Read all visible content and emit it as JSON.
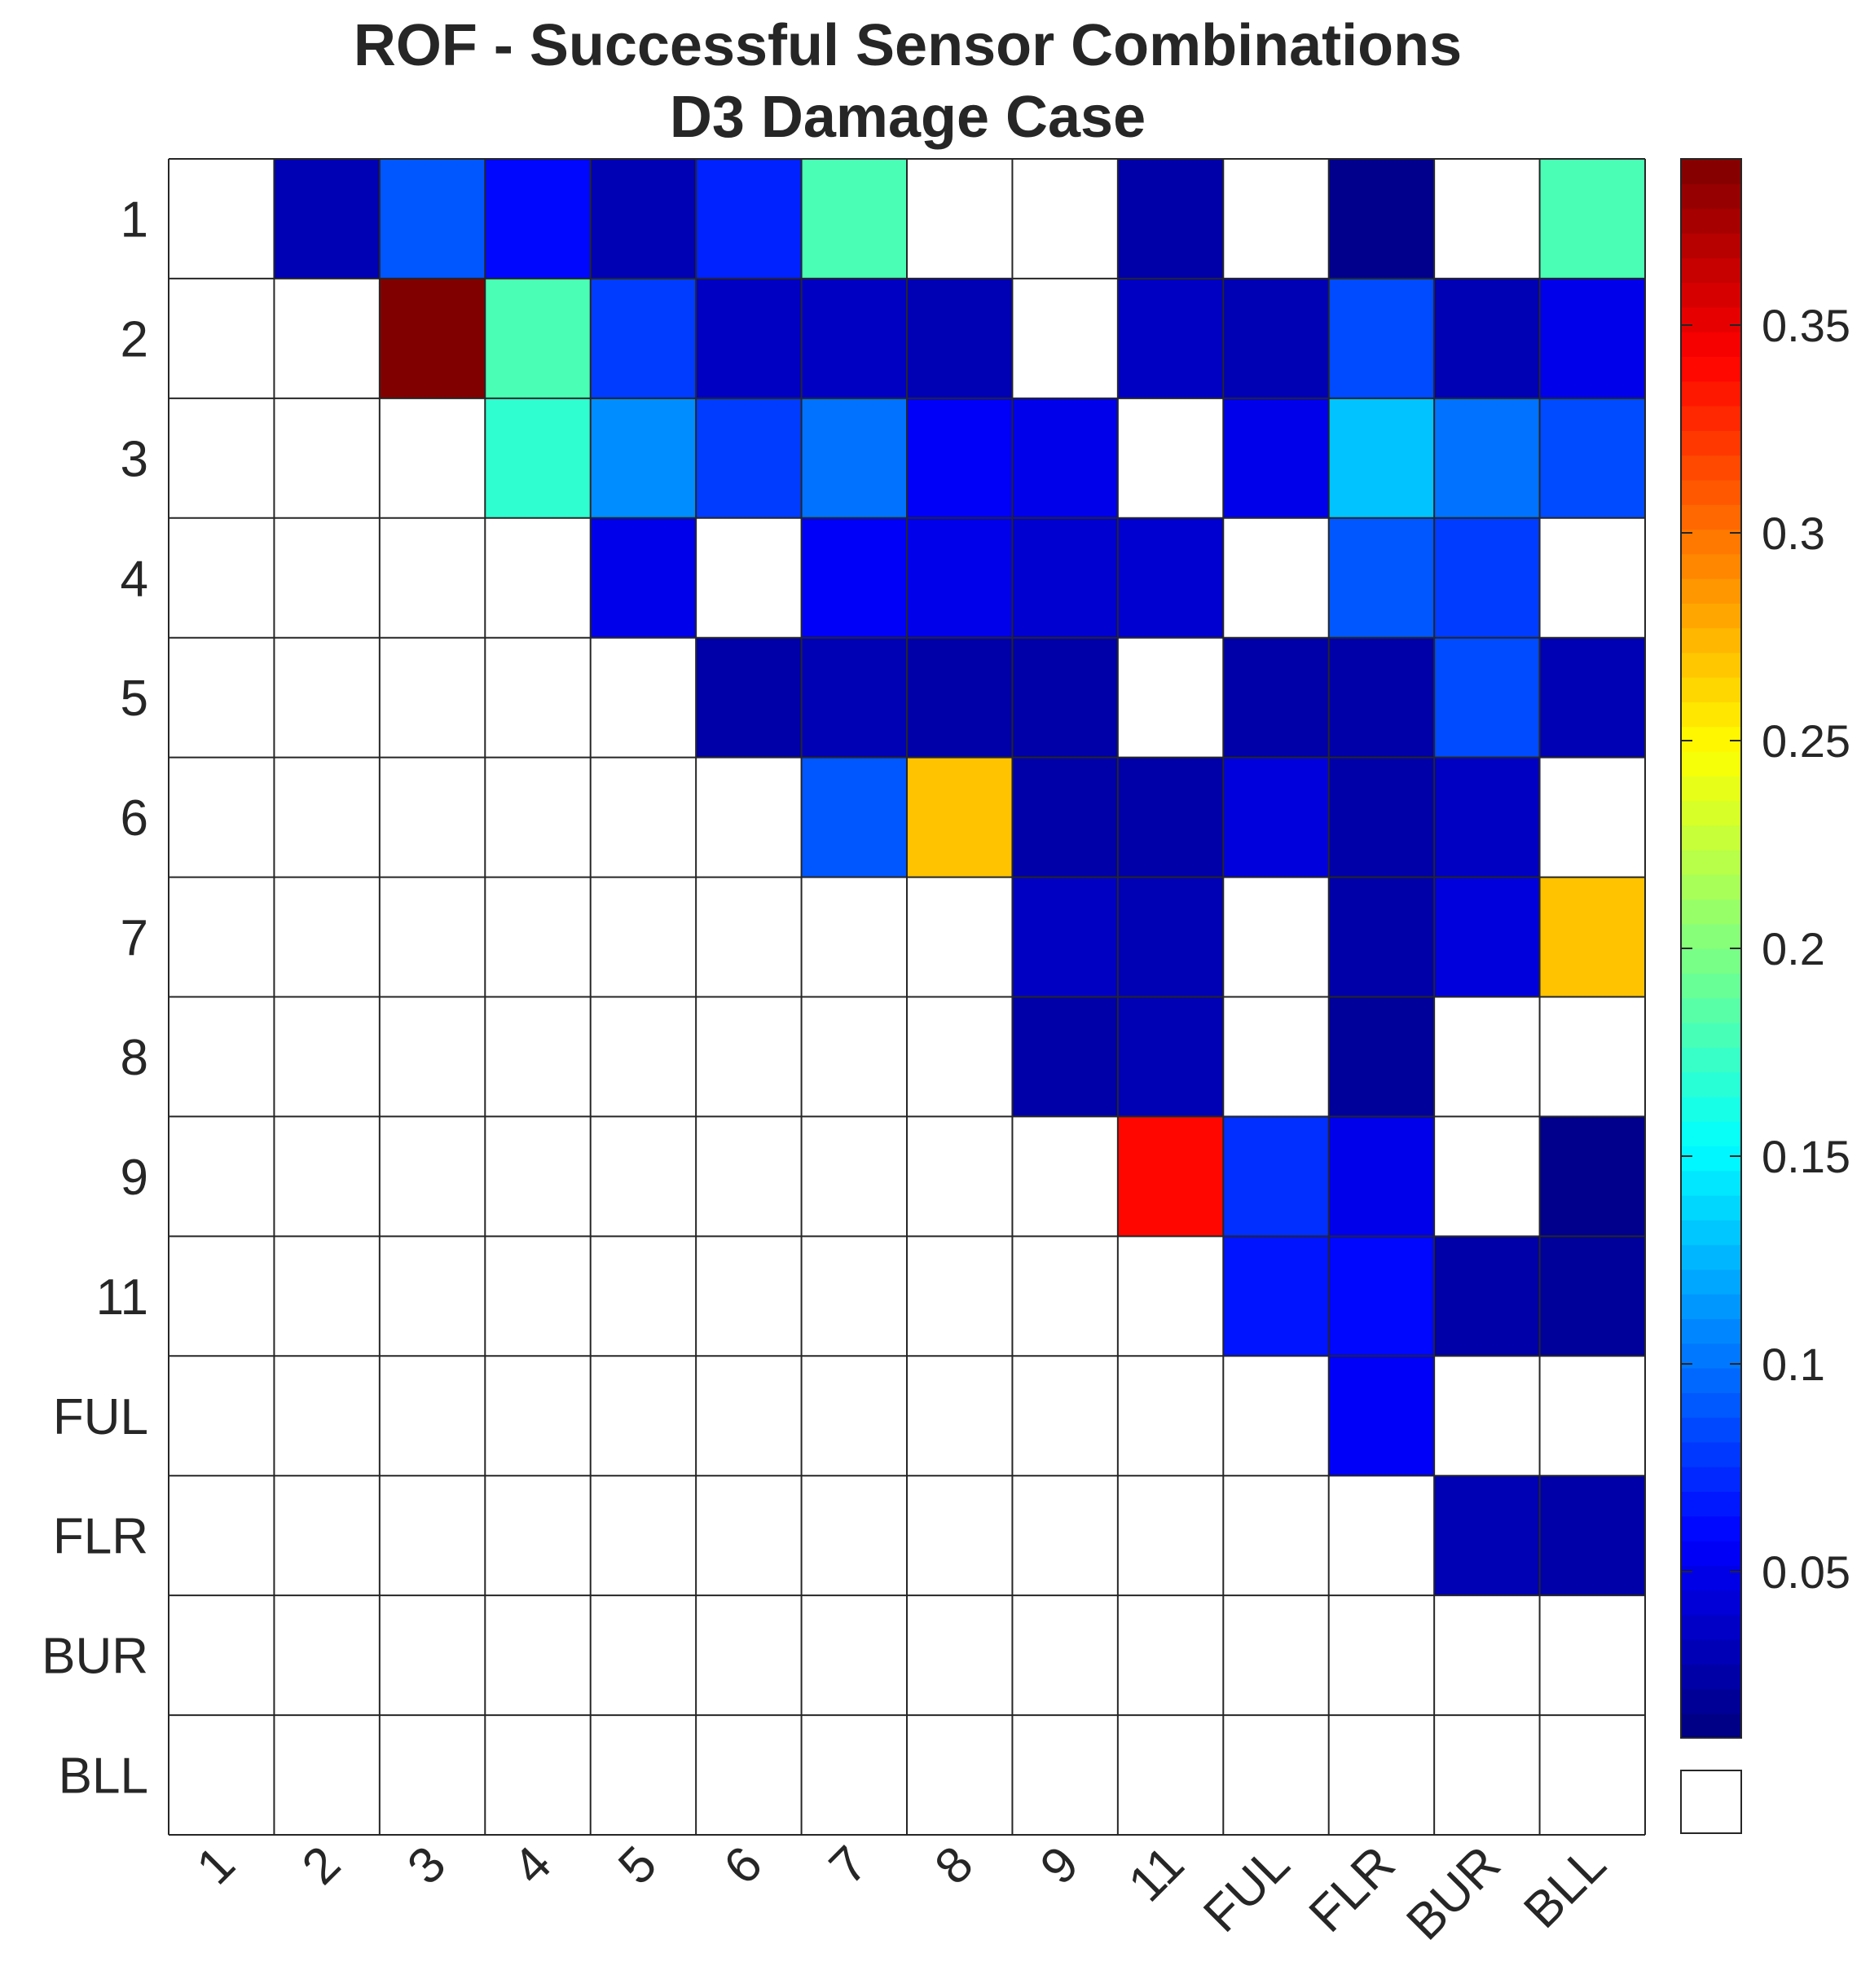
{
  "chart_data": {
    "type": "heatmap",
    "title": "ROF - Successful Sensor Combinations",
    "subtitle": "D3 Damage Case",
    "rows": [
      "1",
      "2",
      "3",
      "4",
      "5",
      "6",
      "7",
      "8",
      "9",
      "11",
      "FUL",
      "FLR",
      "BUR",
      "BLL"
    ],
    "cols": [
      "1",
      "2",
      "3",
      "4",
      "5",
      "6",
      "7",
      "8",
      "9",
      "11",
      "FUL",
      "FLR",
      "BUR",
      "BLL"
    ],
    "colormap": "jet",
    "clim": [
      0.01,
      0.39
    ],
    "colorbar_ticks": [
      0.05,
      0.1,
      0.15,
      0.2,
      0.25,
      0.3,
      0.35
    ],
    "colorbar_tick_labels": [
      "0.05",
      "0.1",
      "0.15",
      "0.2",
      "0.25",
      "0.3",
      "0.35"
    ],
    "missing_value_color": "#ffffff",
    "values": [
      [
        null,
        0.03,
        0.09,
        0.06,
        0.03,
        0.07,
        0.18,
        null,
        null,
        0.025,
        null,
        0.015,
        null,
        0.18
      ],
      [
        null,
        null,
        0.39,
        0.18,
        0.08,
        0.035,
        0.035,
        0.03,
        null,
        0.035,
        0.03,
        0.085,
        0.03,
        0.05
      ],
      [
        null,
        null,
        null,
        0.17,
        0.11,
        0.08,
        0.1,
        0.055,
        0.05,
        null,
        0.05,
        0.13,
        0.1,
        0.085
      ],
      [
        null,
        null,
        null,
        null,
        0.05,
        null,
        0.055,
        0.05,
        0.04,
        0.04,
        null,
        0.09,
        0.08,
        null
      ],
      [
        null,
        null,
        null,
        null,
        null,
        0.025,
        0.03,
        0.025,
        0.025,
        null,
        0.025,
        0.025,
        0.085,
        0.03
      ],
      [
        null,
        null,
        null,
        null,
        null,
        null,
        0.09,
        0.27,
        0.025,
        0.025,
        0.045,
        0.025,
        0.035,
        null
      ],
      [
        null,
        null,
        null,
        null,
        null,
        null,
        null,
        null,
        0.035,
        0.03,
        null,
        0.025,
        0.045,
        0.27
      ],
      [
        null,
        null,
        null,
        null,
        null,
        null,
        null,
        null,
        0.025,
        0.03,
        null,
        0.02,
        null,
        null
      ],
      [
        null,
        null,
        null,
        null,
        null,
        null,
        null,
        null,
        null,
        0.34,
        0.075,
        0.05,
        null,
        0.015
      ],
      [
        null,
        null,
        null,
        null,
        null,
        null,
        null,
        null,
        null,
        null,
        0.065,
        0.06,
        0.025,
        0.02
      ],
      [
        null,
        null,
        null,
        null,
        null,
        null,
        null,
        null,
        null,
        null,
        null,
        0.055,
        null,
        null
      ],
      [
        null,
        null,
        null,
        null,
        null,
        null,
        null,
        null,
        null,
        null,
        null,
        null,
        0.03,
        0.025
      ],
      [
        null,
        null,
        null,
        null,
        null,
        null,
        null,
        null,
        null,
        null,
        null,
        null,
        null,
        null
      ],
      [
        null,
        null,
        null,
        null,
        null,
        null,
        null,
        null,
        null,
        null,
        null,
        null,
        null,
        null
      ]
    ]
  }
}
